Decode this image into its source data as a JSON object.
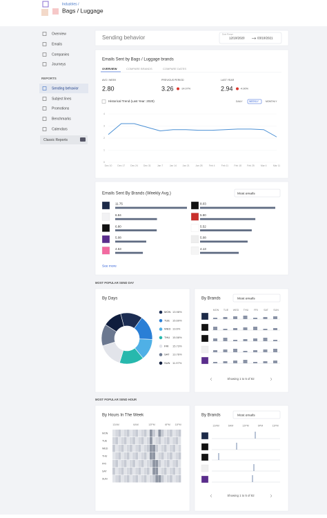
{
  "header": {
    "breadcrumb": "Industries /",
    "title": "Bags / Luggage"
  },
  "sidebar": {
    "items": [
      "Overview",
      "Emails",
      "Companies",
      "Journeys"
    ],
    "section": "REPORTS",
    "reports": [
      "Sending behavior",
      "Subject lines",
      "Promotions",
      "Benchmarks",
      "Calendars"
    ],
    "classic": "Classic Reports"
  },
  "page": {
    "title": "Sending behavior",
    "date_label": "Date Range",
    "date_from": "12/10/2020",
    "date_to": "03/10/2021"
  },
  "emails_sent": {
    "title": "Emails Sent by Bags / Luggage brands",
    "tabs": [
      "OVERVIEW",
      "COMPARE BRANDS",
      "COMPARE DATES"
    ],
    "stats": [
      {
        "label": "AVG / WEEK",
        "value": "2.80"
      },
      {
        "label": "PREVIOUS PERIOD",
        "value": "3.26",
        "change": "-14.07%"
      },
      {
        "label": "LAST YEAR",
        "value": "2.94",
        "change": "-4.90%"
      }
    ],
    "trend": {
      "label": "Historical Trend (Last Year: 2020)",
      "periods": [
        "DAILY",
        "WEEKLY",
        "MONTHLY"
      ],
      "x": [
        "Dec 10",
        "Dec 17",
        "Dec 24",
        "Dec 31",
        "Jan 7",
        "Jan 14",
        "Jan 21",
        "Jan 28",
        "Feb 4",
        "Feb 11",
        "Feb 18",
        "Feb 25",
        "Mar 4",
        "Mar 11"
      ],
      "values": [
        2.3,
        3.2,
        3.2,
        2.9,
        2.6,
        2.7,
        2.7,
        2.65,
        2.65,
        2.7,
        2.75,
        2.75,
        2.7,
        2.1
      ],
      "ylim": [
        0,
        4
      ],
      "yticks": [
        0,
        1,
        2,
        3,
        4
      ],
      "color": "#4a8fd4"
    }
  },
  "brands": {
    "title": "Emails Sent By Brands (Weekly Avg.)",
    "sort": "Most emails",
    "left": {
      "values": [
        11.75,
        6.84,
        6.8,
        5.08,
        4.53
      ],
      "value_labels": [
        "11.75",
        "6.84",
        "6.80",
        "5.08",
        "4.53"
      ]
    },
    "right": {
      "values": [
        8.03,
        5.9,
        5.52,
        5.08,
        4.13
      ],
      "value_labels": [
        "8.03",
        "5.90",
        "5.52",
        "5.08",
        "4.13"
      ]
    },
    "more": "See more",
    "color": "#5f6b82"
  },
  "send_day": {
    "heading": "MOST POPULAR SEND DAY",
    "by_days": {
      "title": "By Days",
      "days": [
        "MON",
        "TUE",
        "WED",
        "THU",
        "FRI",
        "SAT",
        "SUN"
      ],
      "values": [
        13.98,
        15.69,
        13.6,
        15.58,
        15.73,
        13.76,
        11.97
      ],
      "value_labels": [
        "13.98%",
        "15.69%",
        "13.6%",
        "15.58%",
        "15.73%",
        "13.76%",
        "11.97%"
      ],
      "colors": [
        "#1c2d52",
        "#2a7fd6",
        "#4fb0e6",
        "#27b8ad",
        "#e2e4ea",
        "#6b7890",
        "#0f1d3d"
      ]
    },
    "by_brands": {
      "title": "By Brands",
      "sort": "Most emails",
      "days": [
        "MON",
        "TUE",
        "WED",
        "THU",
        "FRI",
        "SAT",
        "SUN"
      ],
      "pager": "Showing 1 to 5 of 82"
    }
  },
  "send_hour": {
    "heading": "MOST POPULAR SEND HOUR",
    "by_hours": {
      "title": "By Hours In The Week",
      "hours": [
        "12AM",
        "6AM",
        "12PM",
        "6PM",
        "11PM"
      ],
      "days": [
        "MON",
        "TUE",
        "WED",
        "THU",
        "FRI",
        "SAT",
        "SUN"
      ]
    },
    "by_brands": {
      "title": "By Brands",
      "sort": "Most emails",
      "hours": [
        "12AM",
        "6AM",
        "12PM",
        "6PM",
        "11PM"
      ],
      "pager": "Showing 1 to 5 of 82"
    }
  }
}
